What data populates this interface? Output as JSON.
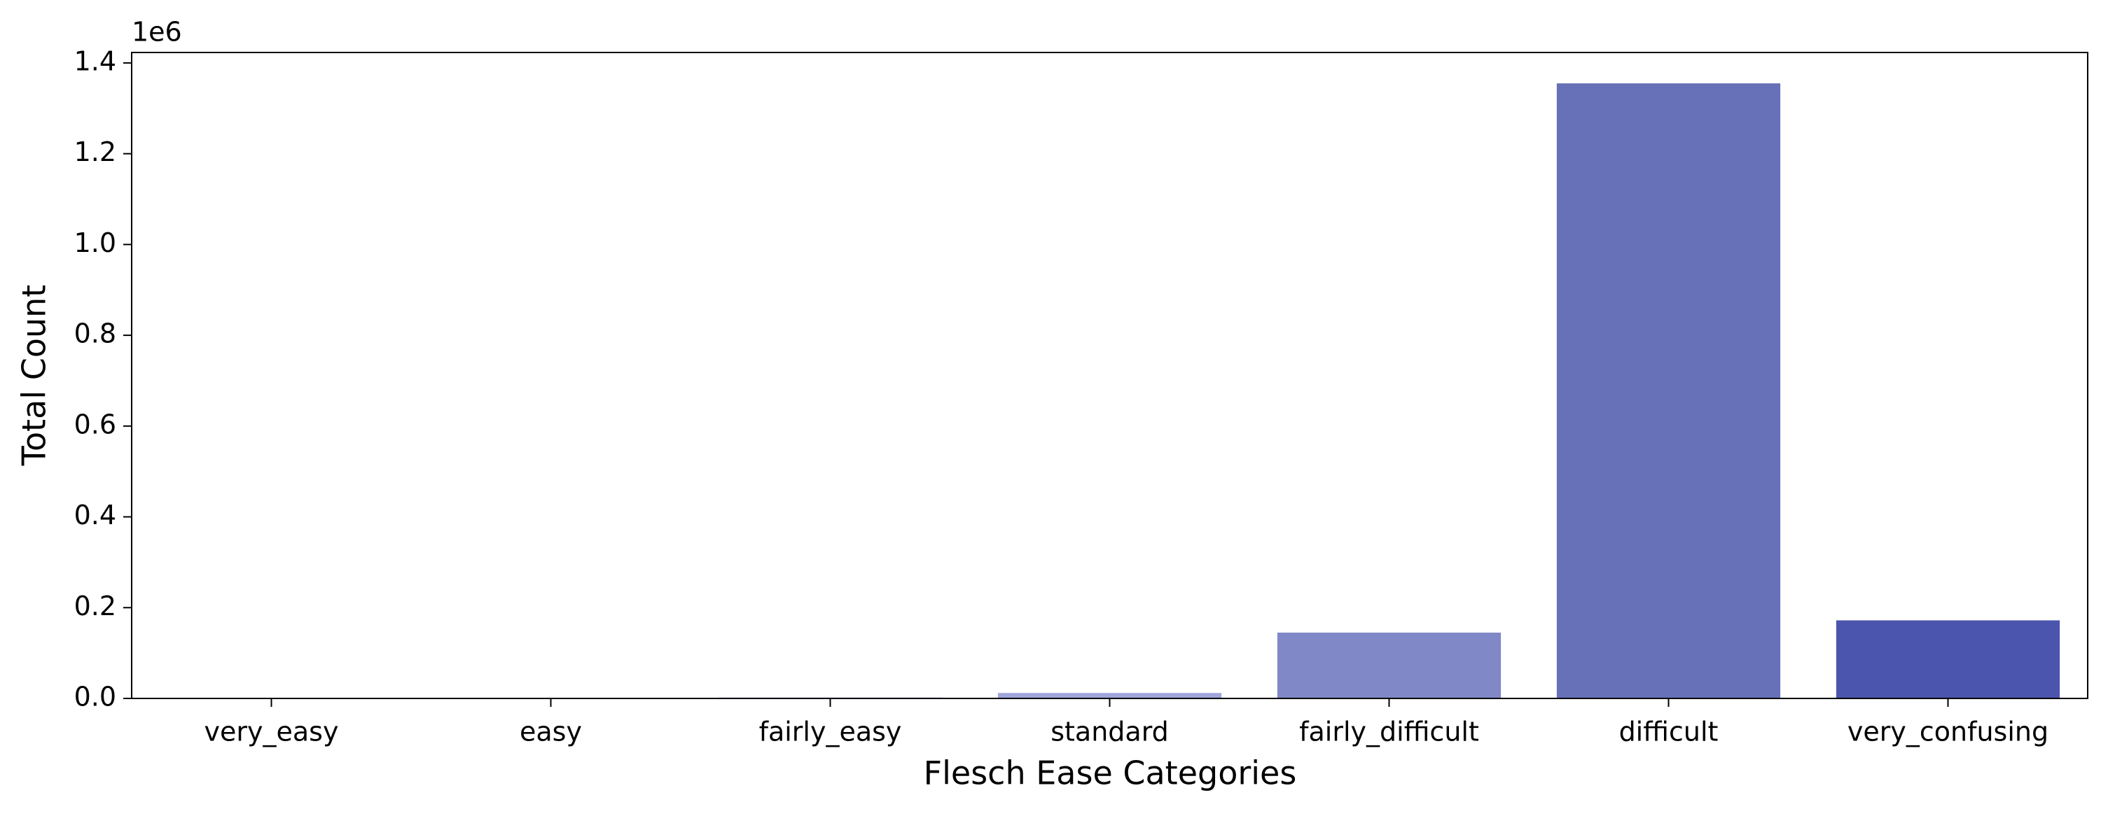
{
  "chart_data": {
    "type": "bar",
    "x_label": "Flesch Ease Categories",
    "y_label": "Total Count",
    "y_offset_label": "1e6",
    "categories": [
      "very_easy",
      "easy",
      "fairly_easy",
      "standard",
      "fairly_difficult",
      "difficult",
      "very_confusing"
    ],
    "values": [
      0.0003,
      0.0005,
      0.002,
      0.012,
      0.145,
      1.355,
      0.172
    ],
    "colors": [
      "#c9cdf0",
      "#bbbfea",
      "#aeb3e4",
      "#a0a6dc",
      "#8088c7",
      "#6771b8",
      "#4c55ae"
    ],
    "ylim": [
      0,
      1.423
    ],
    "yticks": [
      {
        "value": 0,
        "label": "0.0"
      },
      {
        "value": 0.2,
        "label": "0.2"
      },
      {
        "value": 0.4,
        "label": "0.4"
      },
      {
        "value": 0.6,
        "label": "0.6"
      },
      {
        "value": 0.8,
        "label": "0.8"
      },
      {
        "value": 1.0,
        "label": "1.0"
      },
      {
        "value": 1.2,
        "label": "1.2"
      },
      {
        "value": 1.4,
        "label": "1.4"
      }
    ],
    "grid": false
  }
}
